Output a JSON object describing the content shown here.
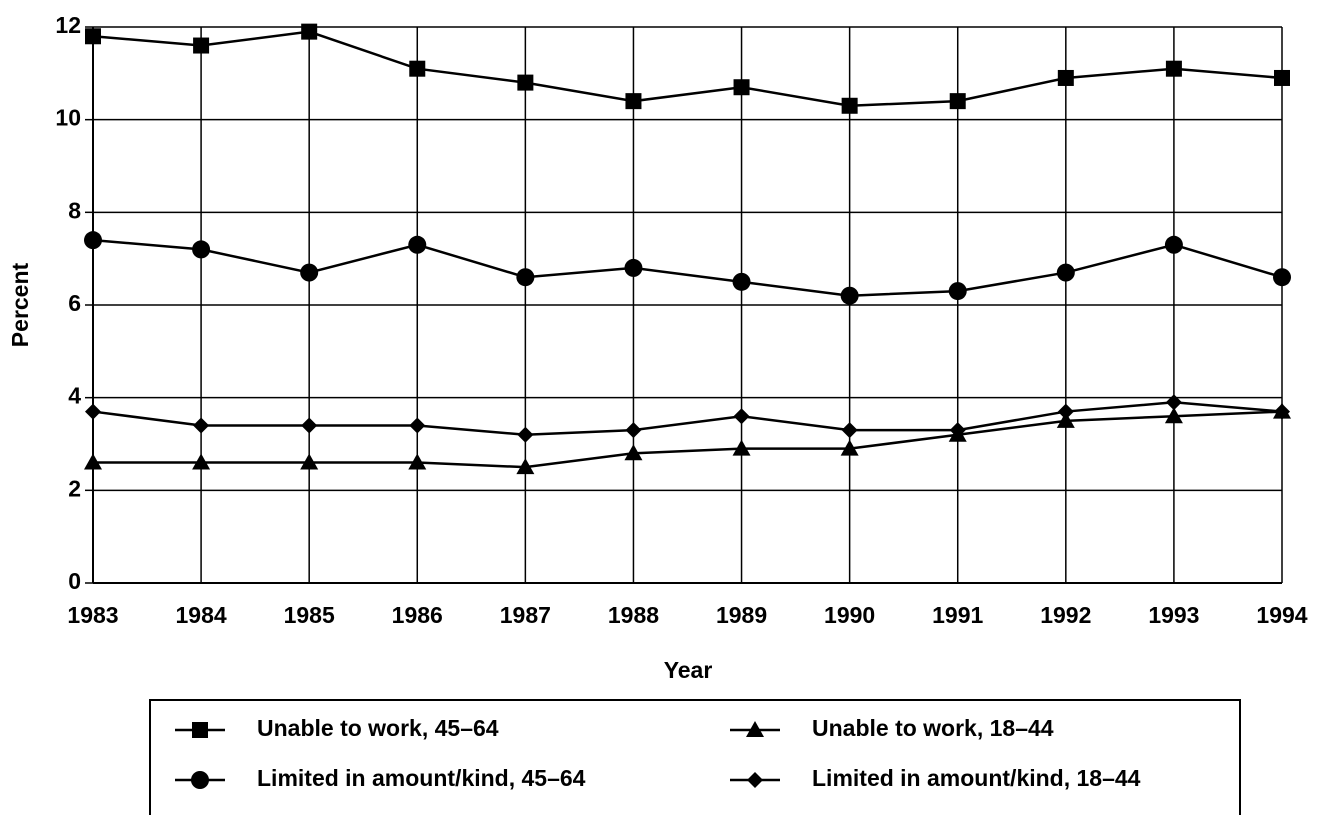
{
  "chart_data": {
    "type": "line",
    "xlabel": "Year",
    "ylabel": "Percent",
    "categories": [
      "1983",
      "1984",
      "1985",
      "1986",
      "1987",
      "1988",
      "1989",
      "1990",
      "1991",
      "1992",
      "1993",
      "1994"
    ],
    "series": [
      {
        "name": "Unable to work, 45–64",
        "color": "#000000",
        "marker": "square",
        "values": [
          11.8,
          11.6,
          11.9,
          11.1,
          10.8,
          10.4,
          10.7,
          10.3,
          10.4,
          10.9,
          11.1,
          10.9
        ]
      },
      {
        "name": "Unable to work, 18–44",
        "color": "#000000",
        "marker": "triangle",
        "values": [
          2.6,
          2.6,
          2.6,
          2.6,
          2.5,
          2.8,
          2.9,
          2.9,
          3.2,
          3.5,
          3.6,
          3.7
        ]
      },
      {
        "name": "Limited in amount/kind, 45–64",
        "color": "#000000",
        "marker": "circle",
        "values": [
          7.4,
          7.2,
          6.7,
          7.3,
          6.6,
          6.8,
          6.5,
          6.2,
          6.3,
          6.7,
          7.3,
          6.6
        ]
      },
      {
        "name": "Limited in amount/kind, 18–44",
        "color": "#000000",
        "marker": "diamond",
        "values": [
          3.7,
          3.4,
          3.4,
          3.4,
          3.2,
          3.3,
          3.6,
          3.3,
          3.3,
          3.7,
          3.9,
          3.7
        ]
      }
    ],
    "ylim": [
      0,
      12
    ],
    "yticks": [
      0,
      2,
      4,
      6,
      8,
      10,
      12
    ],
    "grid": true
  }
}
